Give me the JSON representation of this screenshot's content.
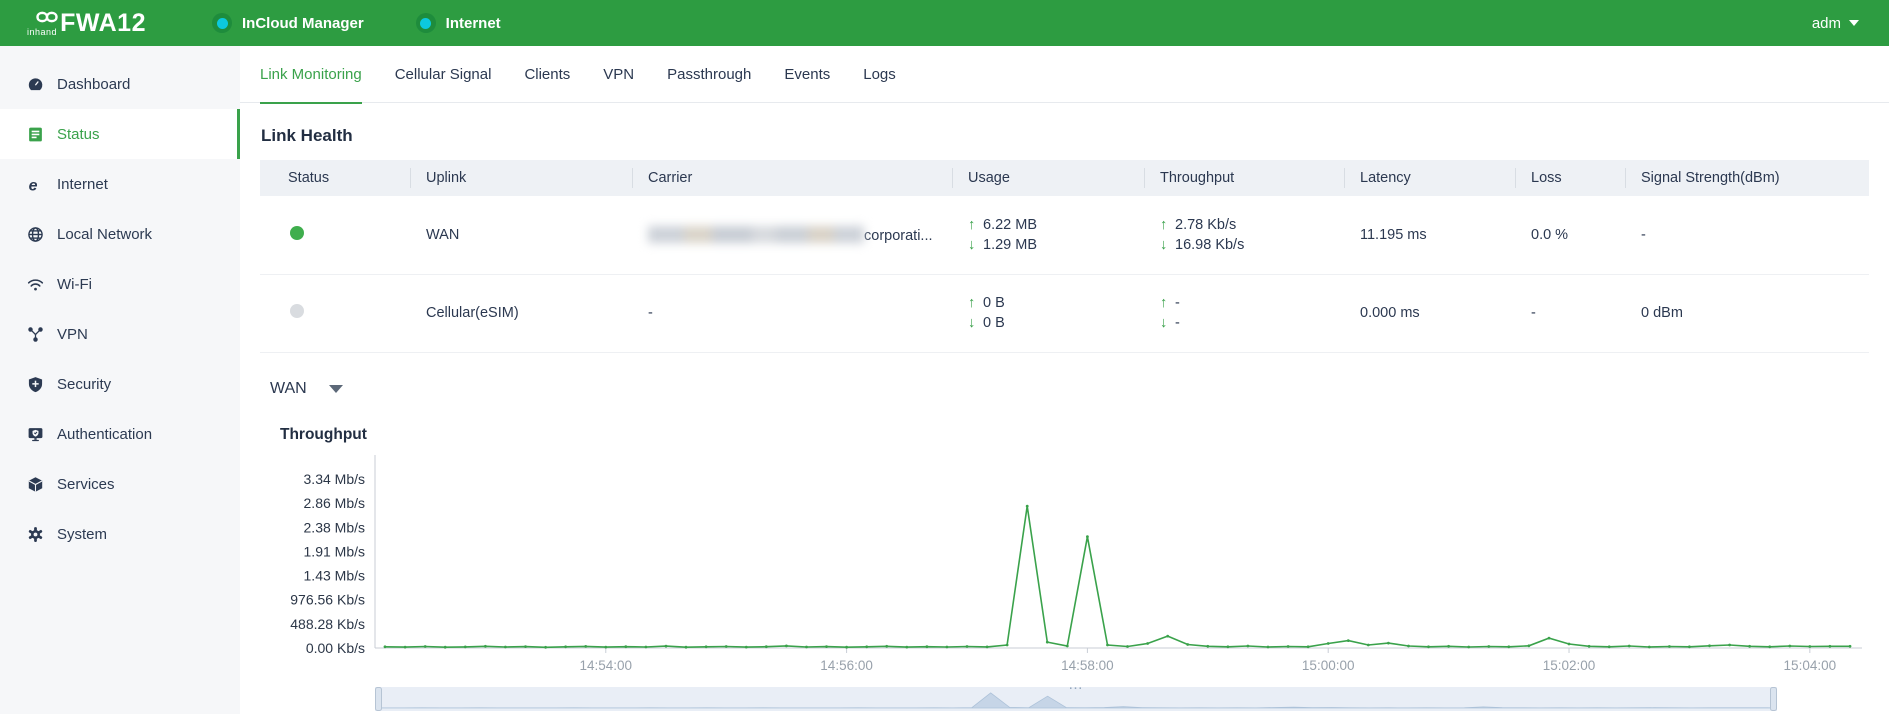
{
  "topbar": {
    "brand": {
      "name": "inhand",
      "model": "FWA12"
    },
    "status_badges": [
      {
        "label": "InCloud Manager"
      },
      {
        "label": "Internet"
      }
    ],
    "user_menu": {
      "label": "adm"
    }
  },
  "sidebar": {
    "items": [
      {
        "label": "Dashboard",
        "icon": "dashboard-icon",
        "active": false
      },
      {
        "label": "Status",
        "icon": "status-icon",
        "active": true
      },
      {
        "label": "Internet",
        "icon": "internet-icon",
        "active": false
      },
      {
        "label": "Local Network",
        "icon": "local-network-icon",
        "active": false
      },
      {
        "label": "Wi-Fi",
        "icon": "wifi-icon",
        "active": false
      },
      {
        "label": "VPN",
        "icon": "vpn-icon",
        "active": false
      },
      {
        "label": "Security",
        "icon": "security-icon",
        "active": false
      },
      {
        "label": "Authentication",
        "icon": "authentication-icon",
        "active": false
      },
      {
        "label": "Services",
        "icon": "services-icon",
        "active": false
      },
      {
        "label": "System",
        "icon": "system-icon",
        "active": false
      }
    ]
  },
  "tabs": {
    "items": [
      {
        "label": "Link Monitoring",
        "active": true
      },
      {
        "label": "Cellular Signal",
        "active": false
      },
      {
        "label": "Clients",
        "active": false
      },
      {
        "label": "VPN",
        "active": false
      },
      {
        "label": "Passthrough",
        "active": false
      },
      {
        "label": "Events",
        "active": false
      },
      {
        "label": "Logs",
        "active": false
      }
    ]
  },
  "link_health": {
    "title": "Link Health",
    "columns": [
      "Status",
      "Uplink",
      "Carrier",
      "Usage",
      "Throughput",
      "Latency",
      "Loss",
      "Signal Strength(dBm)"
    ],
    "rows": [
      {
        "status": "up",
        "uplink": "WAN",
        "carrier_visible": "corporati...",
        "carrier_redacted": true,
        "usage_up": "6.22 MB",
        "usage_down": "1.29 MB",
        "throughput_up": "2.78 Kb/s",
        "throughput_down": "16.98 Kb/s",
        "latency": "11.195 ms",
        "loss": "0.0 %",
        "signal": "-"
      },
      {
        "status": "down",
        "uplink": "Cellular(eSIM)",
        "carrier": "-",
        "usage_up": "0 B",
        "usage_down": "0 B",
        "throughput_up": "-",
        "throughput_down": "-",
        "latency": "0.000 ms",
        "loss": "-",
        "signal": "0 dBm"
      }
    ]
  },
  "uplink_selector": {
    "value": "WAN"
  },
  "chart_data": {
    "type": "line",
    "title": "Throughput",
    "series_name": "WAN throughput",
    "unit": "Kb/s",
    "line_color": "#3aa24b",
    "grid": false,
    "legend_position": "none",
    "ylim": [
      0,
      3417.96
    ],
    "yticks": [
      "0.00 Kb/s",
      "488.28 Kb/s",
      "976.56 Kb/s",
      "1.43 Mb/s",
      "1.91 Mb/s",
      "2.38 Mb/s",
      "2.86 Mb/s",
      "3.34 Mb/s"
    ],
    "xticks": [
      "14:54:00",
      "14:56:00",
      "14:58:00",
      "15:00:00",
      "15:02:00",
      "15:04:00"
    ],
    "x_range": [
      "14:52:05",
      "15:04:25"
    ],
    "x": [
      "14:52:10",
      "14:52:20",
      "14:52:30",
      "14:52:40",
      "14:52:50",
      "14:53:00",
      "14:53:10",
      "14:53:20",
      "14:53:30",
      "14:53:40",
      "14:53:50",
      "14:54:00",
      "14:54:10",
      "14:54:20",
      "14:54:30",
      "14:54:40",
      "14:54:50",
      "14:55:00",
      "14:55:10",
      "14:55:20",
      "14:55:30",
      "14:55:40",
      "14:55:50",
      "14:56:00",
      "14:56:10",
      "14:56:20",
      "14:56:30",
      "14:56:40",
      "14:56:50",
      "14:57:00",
      "14:57:10",
      "14:57:20",
      "14:57:30",
      "14:57:40",
      "14:57:50",
      "14:58:00",
      "14:58:10",
      "14:58:20",
      "14:58:30",
      "14:58:40",
      "14:58:50",
      "14:59:00",
      "14:59:10",
      "14:59:20",
      "14:59:30",
      "14:59:40",
      "14:59:50",
      "15:00:00",
      "15:00:10",
      "15:00:20",
      "15:00:30",
      "15:00:40",
      "15:00:50",
      "15:01:00",
      "15:01:10",
      "15:01:20",
      "15:01:30",
      "15:01:40",
      "15:01:50",
      "15:02:00",
      "15:02:10",
      "15:02:20",
      "15:02:30",
      "15:02:40",
      "15:02:50",
      "15:03:00",
      "15:03:10",
      "15:03:20",
      "15:03:30",
      "15:03:40",
      "15:03:50",
      "15:04:00",
      "15:04:10",
      "15:04:20"
    ],
    "values": [
      25,
      18,
      30,
      16,
      22,
      35,
      20,
      28,
      15,
      24,
      32,
      18,
      26,
      20,
      38,
      16,
      24,
      30,
      18,
      26,
      42,
      20,
      28,
      16,
      24,
      34,
      18,
      26,
      20,
      30,
      22,
      60,
      2870,
      120,
      40,
      2250,
      60,
      30,
      90,
      240,
      70,
      35,
      25,
      40,
      20,
      30,
      25,
      90,
      150,
      60,
      100,
      40,
      25,
      35,
      20,
      30,
      25,
      45,
      200,
      80,
      35,
      25,
      40,
      20,
      30,
      25,
      45,
      60,
      35,
      25,
      40,
      30,
      35,
      35
    ]
  },
  "colors": {
    "header_green": "#2d9c41",
    "accent_green": "#3aa24b",
    "badge_cyan": "#0cc9dd",
    "status_up": "#3fae4d",
    "status_down": "#d9dce0"
  }
}
